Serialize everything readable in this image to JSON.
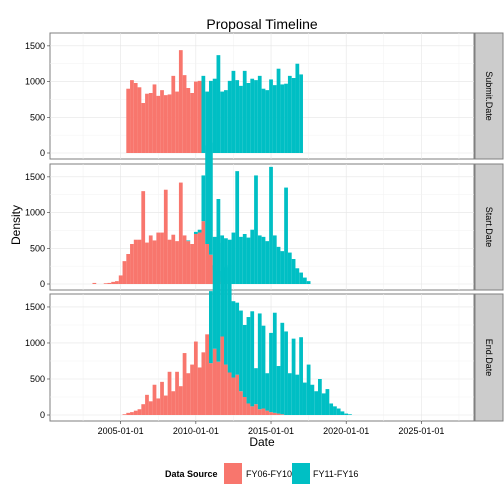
{
  "chart_data": {
    "type": "bar",
    "title": "Proposal Timeline",
    "xlabel": "Date",
    "ylabel": "Density",
    "x_ticks": [
      "2005-01-01",
      "2010-01-01",
      "2015-01-01",
      "2020-01-01",
      "2025-01-01"
    ],
    "x_tick_years": [
      2005,
      2010,
      2015,
      2020,
      2025
    ],
    "xlim": [
      2000.3,
      2028.5
    ],
    "ylim": [
      0,
      1680
    ],
    "y_ticks": [
      0,
      500,
      1000,
      1500
    ],
    "legend": {
      "title": "Data Source",
      "position": "bottom",
      "entries": [
        {
          "label": "FY06-FY10",
          "color": "#F8766D"
        },
        {
          "label": "FY11-FY16",
          "color": "#00BFC4"
        }
      ]
    },
    "bin_width_years": 0.25,
    "panels": [
      {
        "strip": "Submit.Date",
        "series": [
          {
            "name": "FY06-FY10",
            "bins": [
              [
                2005.5,
                900
              ],
              [
                2005.75,
                1020
              ],
              [
                2006.0,
                980
              ],
              [
                2006.25,
                920
              ],
              [
                2006.5,
                700
              ],
              [
                2006.75,
                830
              ],
              [
                2007.0,
                840
              ],
              [
                2007.25,
                960
              ],
              [
                2007.5,
                800
              ],
              [
                2007.75,
                880
              ],
              [
                2008.0,
                810
              ],
              [
                2008.25,
                820
              ],
              [
                2008.5,
                1080
              ],
              [
                2008.75,
                860
              ],
              [
                2009.0,
                1440
              ],
              [
                2009.25,
                1090
              ],
              [
                2009.5,
                910
              ],
              [
                2009.75,
                840
              ],
              [
                2010.0,
                1000
              ],
              [
                2010.25,
                1010
              ]
            ]
          },
          {
            "name": "FY11-FY16",
            "bins": [
              [
                2010.5,
                1080
              ],
              [
                2010.75,
                860
              ],
              [
                2011.0,
                1010
              ],
              [
                2011.25,
                1040
              ],
              [
                2011.5,
                1370
              ],
              [
                2011.75,
                860
              ],
              [
                2012.0,
                880
              ],
              [
                2012.25,
                1010
              ],
              [
                2012.5,
                1150
              ],
              [
                2012.75,
                1020
              ],
              [
                2013.0,
                940
              ],
              [
                2013.25,
                1150
              ],
              [
                2013.5,
                980
              ],
              [
                2013.75,
                1040
              ],
              [
                2014.0,
                1020
              ],
              [
                2014.25,
                1080
              ],
              [
                2014.5,
                900
              ],
              [
                2014.75,
                880
              ],
              [
                2015.0,
                1030
              ],
              [
                2015.25,
                950
              ],
              [
                2015.5,
                1180
              ],
              [
                2015.75,
                960
              ],
              [
                2016.0,
                970
              ],
              [
                2016.25,
                1080
              ],
              [
                2016.5,
                1050
              ],
              [
                2016.75,
                1250
              ],
              [
                2017.0,
                1100
              ]
            ]
          }
        ]
      },
      {
        "strip": "Start.Date",
        "series": [
          {
            "name": "FY06-FY10",
            "bins": [
              [
                2003.25,
                15
              ],
              [
                2004.0,
                10
              ],
              [
                2004.25,
                15
              ],
              [
                2004.5,
                30
              ],
              [
                2004.75,
                40
              ],
              [
                2005.0,
                120
              ],
              [
                2005.25,
                320
              ],
              [
                2005.5,
                420
              ],
              [
                2005.75,
                560
              ],
              [
                2006.0,
                620
              ],
              [
                2006.25,
                620
              ],
              [
                2006.5,
                1300
              ],
              [
                2006.75,
                580
              ],
              [
                2007.0,
                680
              ],
              [
                2007.25,
                610
              ],
              [
                2007.5,
                720
              ],
              [
                2007.75,
                720
              ],
              [
                2008.0,
                1320
              ],
              [
                2008.25,
                620
              ],
              [
                2008.5,
                690
              ],
              [
                2008.75,
                600
              ],
              [
                2009.0,
                1420
              ],
              [
                2009.25,
                680
              ],
              [
                2009.5,
                600
              ],
              [
                2009.75,
                560
              ],
              [
                2010.0,
                700
              ],
              [
                2010.25,
                720
              ],
              [
                2010.5,
                880
              ],
              [
                2010.75,
                560
              ],
              [
                2011.0,
                410
              ],
              [
                2011.25,
                200
              ],
              [
                2011.5,
                90
              ],
              [
                2011.75,
                30
              ]
            ]
          },
          {
            "name": "FY11-FY16",
            "bins": [
              [
                2009.5,
                10
              ],
              [
                2010.0,
                30
              ],
              [
                2010.25,
                40
              ],
              [
                2010.5,
                640
              ],
              [
                2010.75,
                1380
              ],
              [
                2011.0,
                1570
              ],
              [
                2011.25,
                460
              ],
              [
                2011.5,
                1100
              ],
              [
                2011.75,
                650
              ],
              [
                2012.0,
                640
              ],
              [
                2012.25,
                620
              ],
              [
                2012.5,
                720
              ],
              [
                2012.75,
                1580
              ],
              [
                2013.0,
                660
              ],
              [
                2013.25,
                700
              ],
              [
                2013.5,
                650
              ],
              [
                2013.75,
                760
              ],
              [
                2014.0,
                1520
              ],
              [
                2014.25,
                680
              ],
              [
                2014.5,
                660
              ],
              [
                2014.75,
                600
              ],
              [
                2015.0,
                1640
              ],
              [
                2015.25,
                680
              ],
              [
                2015.5,
                520
              ],
              [
                2015.75,
                460
              ],
              [
                2016.0,
                1350
              ],
              [
                2016.25,
                440
              ],
              [
                2016.5,
                350
              ],
              [
                2016.75,
                220
              ],
              [
                2017.0,
                160
              ],
              [
                2017.25,
                90
              ],
              [
                2017.5,
                40
              ]
            ]
          }
        ]
      },
      {
        "strip": "End.Date",
        "series": [
          {
            "name": "FY06-FY10",
            "bins": [
              [
                2005.25,
                10
              ],
              [
                2005.5,
                30
              ],
              [
                2005.75,
                40
              ],
              [
                2006.0,
                60
              ],
              [
                2006.25,
                80
              ],
              [
                2006.5,
                150
              ],
              [
                2006.75,
                280
              ],
              [
                2007.0,
                190
              ],
              [
                2007.25,
                420
              ],
              [
                2007.5,
                230
              ],
              [
                2007.75,
                460
              ],
              [
                2008.0,
                270
              ],
              [
                2008.25,
                600
              ],
              [
                2008.5,
                330
              ],
              [
                2008.75,
                600
              ],
              [
                2009.0,
                400
              ],
              [
                2009.25,
                860
              ],
              [
                2009.5,
                580
              ],
              [
                2009.75,
                700
              ],
              [
                2010.0,
                1020
              ],
              [
                2010.25,
                660
              ],
              [
                2010.5,
                870
              ],
              [
                2010.75,
                1120
              ],
              [
                2011.0,
                720
              ],
              [
                2011.25,
                920
              ],
              [
                2011.5,
                740
              ],
              [
                2011.75,
                1090
              ],
              [
                2012.0,
                700
              ],
              [
                2012.25,
                590
              ],
              [
                2012.5,
                520
              ],
              [
                2012.75,
                560
              ],
              [
                2013.0,
                330
              ],
              [
                2013.25,
                250
              ],
              [
                2013.5,
                160
              ],
              [
                2013.75,
                120
              ],
              [
                2014.0,
                150
              ],
              [
                2014.25,
                80
              ],
              [
                2014.5,
                90
              ],
              [
                2014.75,
                60
              ],
              [
                2015.0,
                40
              ],
              [
                2015.25,
                30
              ],
              [
                2015.5,
                20
              ],
              [
                2015.75,
                10
              ]
            ]
          },
          {
            "name": "FY11-FY16",
            "bins": [
              [
                2011.0,
                1000
              ],
              [
                2011.25,
                1160
              ],
              [
                2011.5,
                1260
              ],
              [
                2011.75,
                1300
              ],
              [
                2012.0,
                1350
              ],
              [
                2012.25,
                1490
              ],
              [
                2012.5,
                1060
              ],
              [
                2012.75,
                1000
              ],
              [
                2013.0,
                1120
              ],
              [
                2013.25,
                1000
              ],
              [
                2013.5,
                1200
              ],
              [
                2013.75,
                1320
              ],
              [
                2014.0,
                500
              ],
              [
                2014.25,
                1330
              ],
              [
                2014.5,
                1150
              ],
              [
                2014.75,
                520
              ],
              [
                2015.0,
                1100
              ],
              [
                2015.25,
                1390
              ],
              [
                2015.5,
                660
              ],
              [
                2015.75,
                1270
              ],
              [
                2016.0,
                1160
              ],
              [
                2016.25,
                580
              ],
              [
                2016.5,
                1060
              ],
              [
                2016.75,
                560
              ],
              [
                2017.0,
                1080
              ],
              [
                2017.25,
                450
              ],
              [
                2017.5,
                700
              ],
              [
                2017.75,
                420
              ],
              [
                2018.0,
                330
              ],
              [
                2018.25,
                500
              ],
              [
                2018.5,
                300
              ],
              [
                2018.75,
                360
              ],
              [
                2019.0,
                160
              ],
              [
                2019.25,
                120
              ],
              [
                2019.5,
                90
              ],
              [
                2019.75,
                50
              ],
              [
                2020.0,
                20
              ],
              [
                2020.25,
                10
              ]
            ]
          }
        ]
      }
    ]
  }
}
